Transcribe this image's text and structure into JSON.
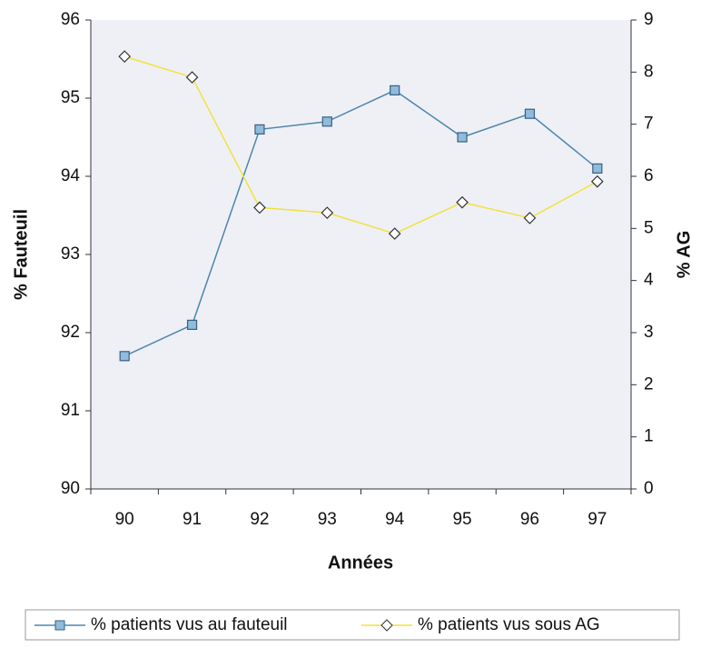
{
  "chart_data": {
    "type": "line",
    "categories": [
      "90",
      "91",
      "92",
      "93",
      "94",
      "95",
      "96",
      "97"
    ],
    "xlabel": "Années",
    "ylabel": "% Fauteuil",
    "y2label": "% AG",
    "ylim": [
      90,
      96
    ],
    "yticks": [
      90,
      91,
      92,
      93,
      94,
      95,
      96
    ],
    "y2lim": [
      0,
      9
    ],
    "y2ticks": [
      0,
      1,
      2,
      3,
      4,
      5,
      6,
      7,
      8,
      9
    ],
    "legend": "bottom",
    "series": [
      {
        "name": "% patients vus au fauteuil",
        "color": "#4f86ad",
        "marker": "square",
        "values": [
          91.7,
          92.1,
          94.6,
          94.7,
          95.1,
          94.5,
          94.8,
          94.1
        ]
      },
      {
        "name": "% patients vus sous AG",
        "color": "#f2e23c",
        "marker": "diamond",
        "axis": "y2",
        "values": [
          8.3,
          7.9,
          5.4,
          5.3,
          4.9,
          5.5,
          5.2,
          5.9
        ]
      }
    ]
  }
}
